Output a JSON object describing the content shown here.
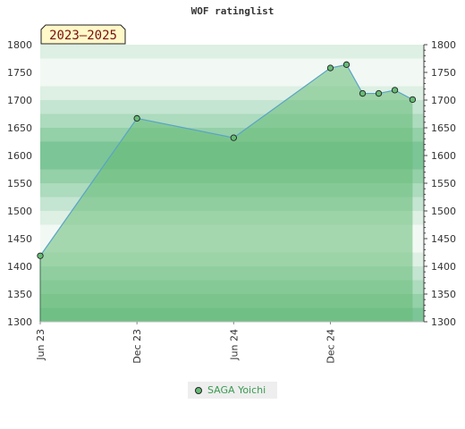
{
  "chart_data": {
    "type": "area",
    "title": "WOF ratinglist",
    "period_label": "2023–2025",
    "ylim": [
      1300,
      1800
    ],
    "y_ticks": [
      1300,
      1350,
      1400,
      1450,
      1500,
      1550,
      1600,
      1650,
      1700,
      1750,
      1800
    ],
    "x_ticks": [
      "Jun 23",
      "Dec 23",
      "Jun 24",
      "Dec 24"
    ],
    "x_range": [
      0,
      23.8
    ],
    "series": [
      {
        "name": "SAGA Yoichi",
        "color": "#66bb77",
        "points": [
          {
            "x": 0,
            "y": 1419
          },
          {
            "x": 6,
            "y": 1667
          },
          {
            "x": 12,
            "y": 1632
          },
          {
            "x": 18,
            "y": 1758
          },
          {
            "x": 19,
            "y": 1764
          },
          {
            "x": 20,
            "y": 1712
          },
          {
            "x": 21,
            "y": 1712
          },
          {
            "x": 22,
            "y": 1718
          },
          {
            "x": 23.1,
            "y": 1701
          }
        ]
      }
    ],
    "legend_position": "bottom-center"
  }
}
